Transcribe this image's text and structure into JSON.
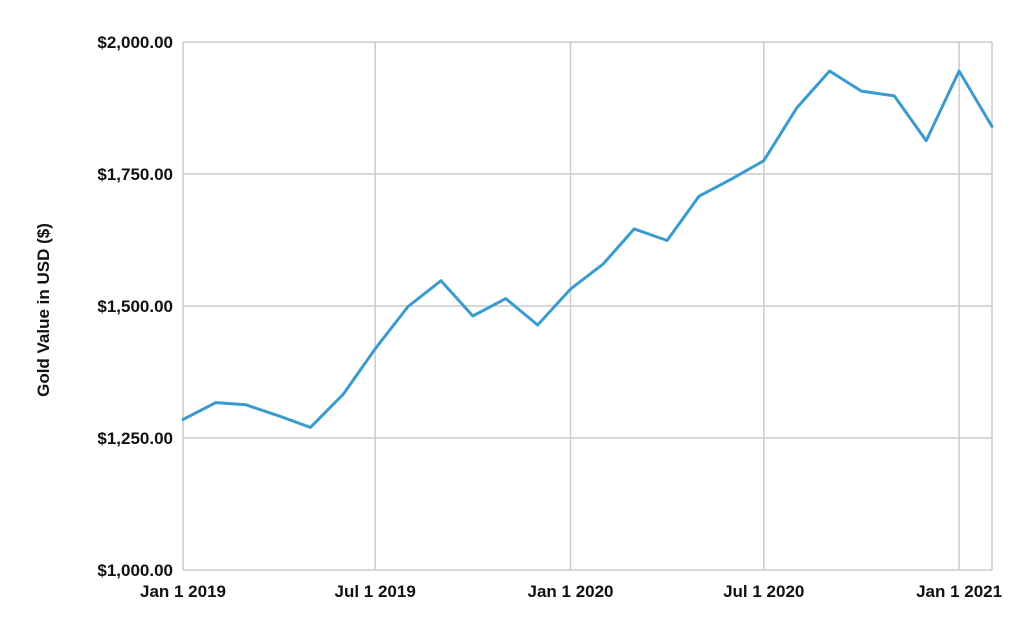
{
  "chart_data": {
    "type": "line",
    "ylabel": "Gold Value in USD ($)",
    "xlabel": "",
    "ylim": [
      1000,
      2000
    ],
    "xlim": [
      "2019-01-01",
      "2021-02-01"
    ],
    "y_ticks": [
      "$1,000.00",
      "$1,250.00",
      "$1,500.00",
      "$1,750.00",
      "$2,000.00"
    ],
    "y_tick_values": [
      1000,
      1250,
      1500,
      1750,
      2000
    ],
    "x_ticks": [
      "Jan 1 2019",
      "Jul 1 2019",
      "Jan 1 2020",
      "Jul 1 2020",
      "Jan 1 2021"
    ],
    "x_tick_values": [
      "2019-01-01",
      "2019-07-01",
      "2020-01-01",
      "2020-07-01",
      "2021-01-01"
    ],
    "grid": true,
    "colors": {
      "series": "#3a9bd0",
      "grid": "#cccccc",
      "text": "#111111"
    },
    "x": [
      "2019-01-01",
      "2019-02-01",
      "2019-03-01",
      "2019-04-01",
      "2019-05-01",
      "2019-06-01",
      "2019-07-01",
      "2019-08-01",
      "2019-09-01",
      "2019-10-01",
      "2019-11-01",
      "2019-12-01",
      "2020-01-01",
      "2020-02-01",
      "2020-03-01",
      "2020-04-01",
      "2020-05-01",
      "2020-06-01",
      "2020-07-01",
      "2020-08-01",
      "2020-09-01",
      "2020-10-01",
      "2020-11-01",
      "2020-12-01",
      "2021-01-01",
      "2021-02-01"
    ],
    "series": [
      {
        "values": [
          1285,
          1317,
          1313,
          1292,
          1270,
          1333,
          1419,
          1499,
          1548,
          1481,
          1514,
          1464,
          1532,
          1580,
          1646,
          1624,
          1708,
          1741,
          1775,
          1875,
          1945,
          1907,
          1898,
          1813,
          1945,
          1840
        ]
      }
    ]
  }
}
